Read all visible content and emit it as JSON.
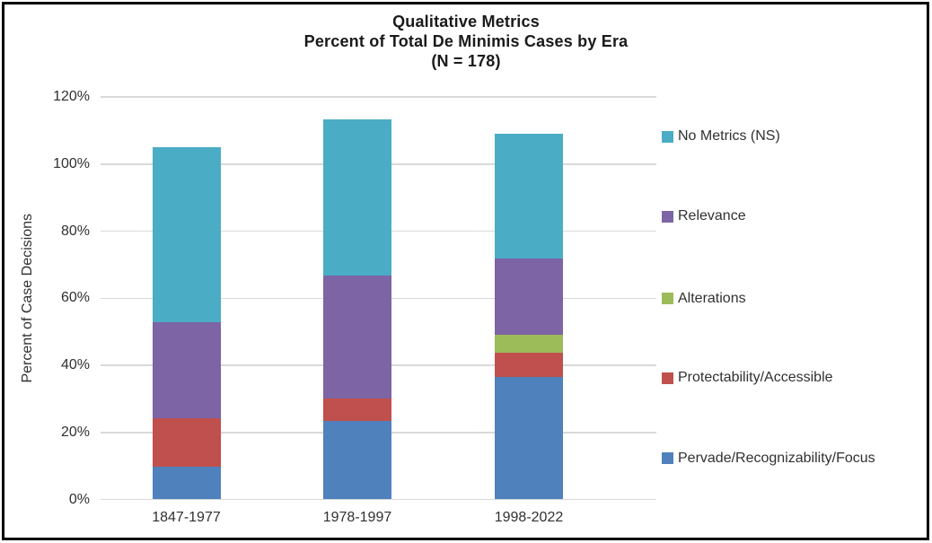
{
  "chart_data": {
    "type": "bar",
    "variant": "stacked-column",
    "title_lines": [
      "Qualitative Metrics",
      "Percent of Total De Minimis Cases by Era",
      "(N = 178)"
    ],
    "ylabel": "Percent of Case Decisions",
    "xlabel": "",
    "categories": [
      "1847-1977",
      "1978-1997",
      "1998-2022"
    ],
    "series": [
      {
        "name": "Pervade/Recognizability/Focus",
        "color": "#4F81BD",
        "values": [
          9.7,
          23.4,
          36.4
        ]
      },
      {
        "name": "Protectability/Accessible",
        "color": "#C0504D",
        "values": [
          14.5,
          6.7,
          7.4
        ]
      },
      {
        "name": "Alterations",
        "color": "#9CBB59",
        "values": [
          0,
          0,
          5.4
        ]
      },
      {
        "name": "Relevance",
        "color": "#7C64A5",
        "values": [
          28.6,
          36.6,
          22.6
        ]
      },
      {
        "name": "No Metrics (NS)",
        "color": "#4BACC6",
        "values": [
          52.2,
          46.6,
          37.1
        ]
      }
    ],
    "stack_totals_pct": [
      105.0,
      113.3,
      108.9
    ],
    "y_ticks": [
      "0%",
      "20%",
      "40%",
      "60%",
      "80%",
      "100%",
      "120%"
    ],
    "y_tick_values": [
      0,
      20,
      40,
      60,
      80,
      100,
      120
    ],
    "ylim": [
      0,
      120
    ],
    "grid": "horizontal",
    "gridline_color": "#d9d9d9",
    "legend_position": "right",
    "legend_order": [
      "No Metrics (NS)",
      "Relevance",
      "Alterations",
      "Protectability/Accessible",
      "Pervade/Recognizability/Focus"
    ]
  }
}
